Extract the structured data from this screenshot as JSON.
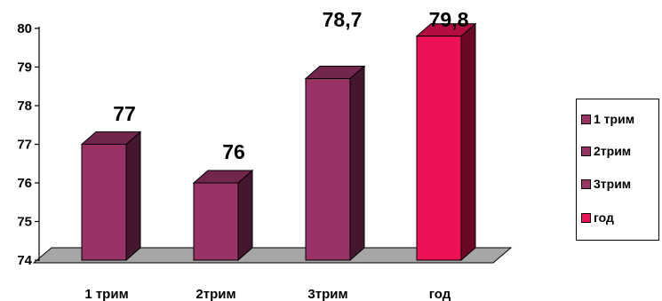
{
  "chart_data": {
    "type": "bar",
    "title": "",
    "xlabel": "",
    "ylabel": "",
    "categories": [
      "1 трим",
      "2трим",
      "3трим",
      "год"
    ],
    "values": [
      77,
      76,
      78.7,
      79.8
    ],
    "data_labels": [
      "77",
      "76",
      "78,7",
      "79,8"
    ],
    "colors": [
      "#993366",
      "#993366",
      "#993366",
      "#EE1155"
    ],
    "ylim": [
      74,
      80
    ],
    "yticks": [
      "74",
      "75",
      "76",
      "77",
      "78",
      "79",
      "80"
    ],
    "grid": false,
    "legend": {
      "position": "right",
      "entries": [
        "1 трим",
        "2трим",
        "3трим",
        "год"
      ]
    }
  }
}
